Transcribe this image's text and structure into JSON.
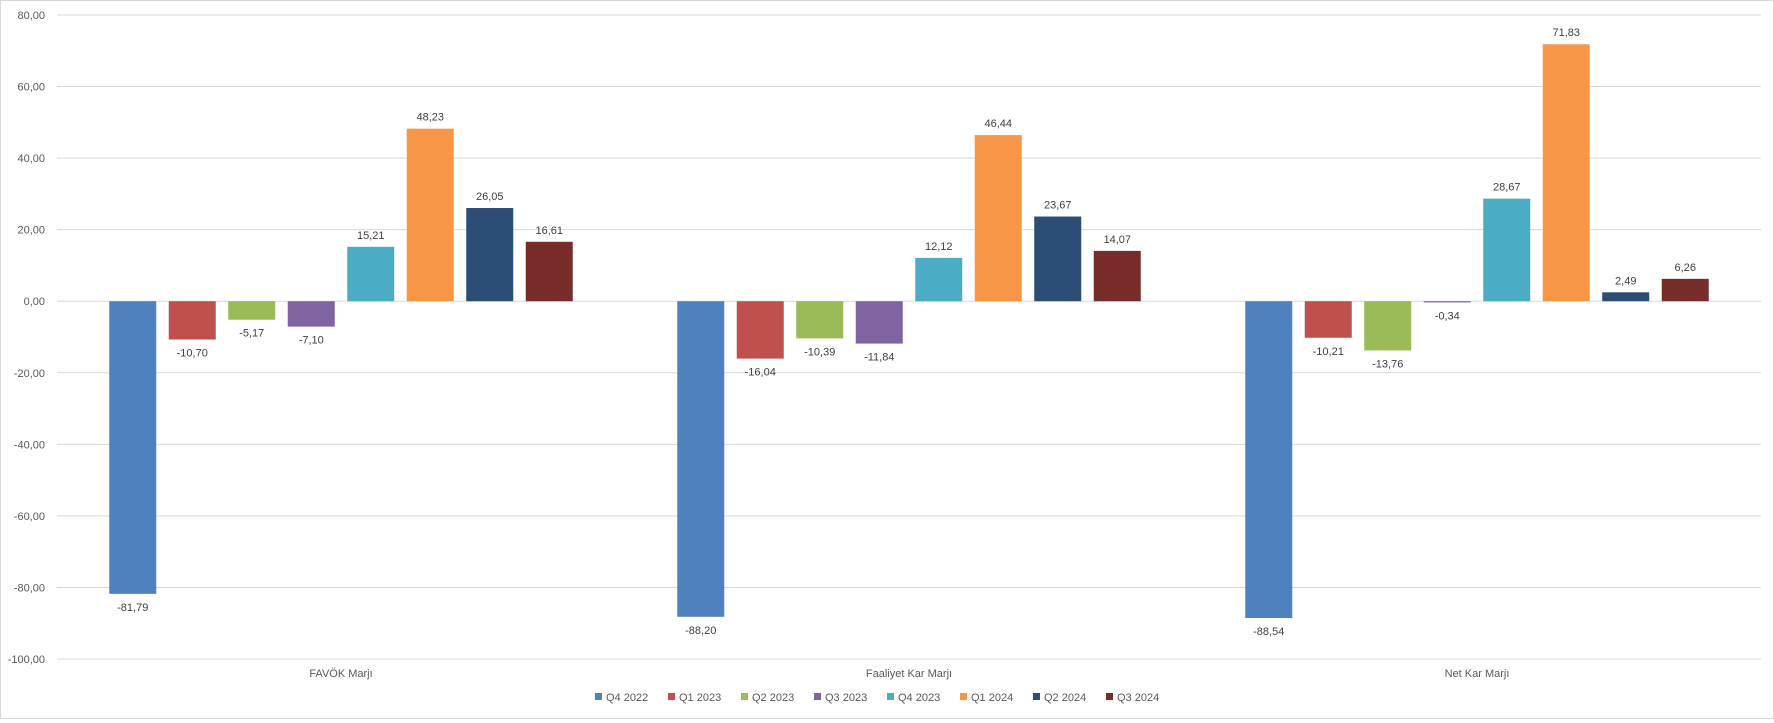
{
  "chart_data": {
    "type": "bar",
    "title": "",
    "xlabel": "",
    "ylabel": "",
    "ylim": [
      -100,
      80
    ],
    "y_ticks": [
      80,
      60,
      40,
      20,
      0,
      -20,
      -40,
      -60,
      -80,
      -100
    ],
    "y_tick_labels": [
      "80,00",
      "60,00",
      "40,00",
      "20,00",
      "0,00",
      "-20,00",
      "-40,00",
      "-60,00",
      "-80,00",
      "-100,00"
    ],
    "grid": true,
    "legend_position": "bottom",
    "categories": [
      "FAVÖK Marjı",
      "Faaliyet Kar Marjı",
      "Net Kar Marjı"
    ],
    "series": [
      {
        "name": "Q4 2022",
        "color": "#4f81bd",
        "values": [
          -81.79,
          -88.2,
          -88.54
        ],
        "labels": [
          "-81,79",
          "-88,20",
          "-88,54"
        ]
      },
      {
        "name": "Q1 2023",
        "color": "#c0504d",
        "values": [
          -10.7,
          -16.04,
          -10.21
        ],
        "labels": [
          "-10,70",
          "-16,04",
          "-10,21"
        ]
      },
      {
        "name": "Q2 2023",
        "color": "#9bbb59",
        "values": [
          -5.17,
          -10.39,
          -13.76
        ],
        "labels": [
          "-5,17",
          "-10,39",
          "-13,76"
        ]
      },
      {
        "name": "Q3 2023",
        "color": "#8064a2",
        "values": [
          -7.1,
          -11.84,
          -0.34
        ],
        "labels": [
          "-7,10",
          "-11,84",
          "-0,34"
        ]
      },
      {
        "name": "Q4 2023",
        "color": "#4bacc6",
        "values": [
          15.21,
          12.12,
          28.67
        ],
        "labels": [
          "15,21",
          "12,12",
          "28,67"
        ]
      },
      {
        "name": "Q1 2024",
        "color": "#f79646",
        "values": [
          48.23,
          46.44,
          71.83
        ],
        "labels": [
          "48,23",
          "46,44",
          "71,83"
        ]
      },
      {
        "name": "Q2 2024",
        "color": "#2c4d75",
        "values": [
          26.05,
          23.67,
          2.49
        ],
        "labels": [
          "26,05",
          "23,67",
          "2,49"
        ]
      },
      {
        "name": "Q3 2024",
        "color": "#772c2a",
        "values": [
          16.61,
          14.07,
          6.26
        ],
        "labels": [
          "16,61",
          "14,07",
          "6,26"
        ]
      }
    ]
  }
}
